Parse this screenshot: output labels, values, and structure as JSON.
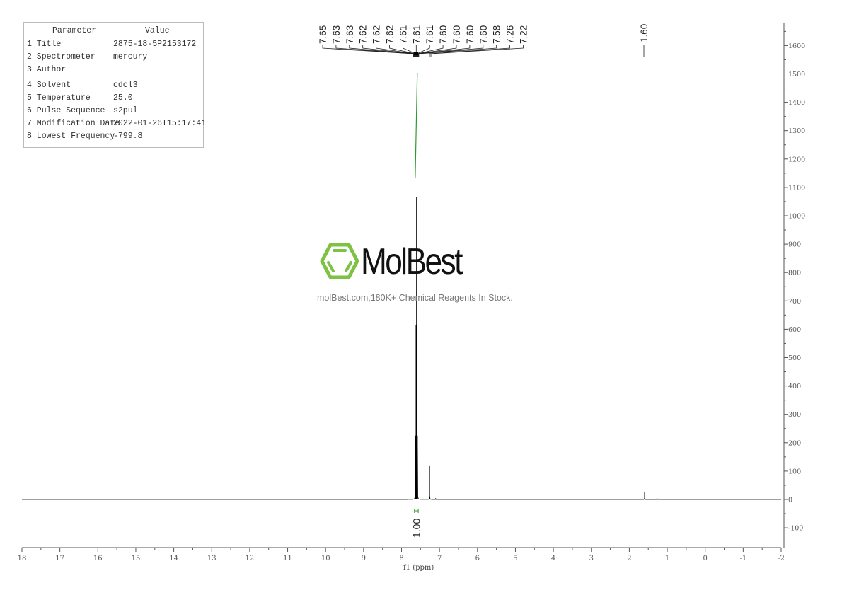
{
  "parameters": {
    "header": {
      "key": "Parameter",
      "value": "Value"
    },
    "rows": [
      {
        "key": "1 Title",
        "value": "2875-18-5P2153172"
      },
      {
        "key": "2 Spectrometer",
        "value": "mercury"
      },
      {
        "key": "3 Author",
        "value": ""
      },
      {
        "key": "4 Solvent",
        "value": "cdcl3"
      },
      {
        "key": "5 Temperature",
        "value": "25.0"
      },
      {
        "key": "6 Pulse Sequence",
        "value": "s2pul"
      },
      {
        "key": "7 Modification Date",
        "value": "2022-01-26T15:17:41"
      },
      {
        "key": "8 Lowest Frequency",
        "value": "-799.8"
      }
    ]
  },
  "watermark": {
    "brand": "MolBest",
    "slogan": "molBest.com,180K+ Chemical Reagents In Stock.",
    "color": "#7dc242"
  },
  "chart_data": {
    "type": "line",
    "xlabel": "f1 (ppm)",
    "ylabel": "",
    "xlim": [
      18,
      -2
    ],
    "ylim": [
      -170,
      1680
    ],
    "x_ticks": [
      18,
      17,
      16,
      15,
      14,
      13,
      12,
      11,
      10,
      9,
      8,
      7,
      6,
      5,
      4,
      3,
      2,
      1,
      0,
      -1,
      -2
    ],
    "y_ticks": [
      -100,
      0,
      100,
      200,
      300,
      400,
      500,
      600,
      700,
      800,
      900,
      1000,
      1100,
      1200,
      1300,
      1400,
      1500,
      1600
    ],
    "peaks": [
      {
        "ppm": 7.61,
        "height": 1065
      },
      {
        "ppm": 7.62,
        "height": 615
      },
      {
        "ppm": 7.6,
        "height": 615
      },
      {
        "ppm": 7.63,
        "height": 225
      },
      {
        "ppm": 7.58,
        "height": 225
      },
      {
        "ppm": 7.26,
        "height": 120
      },
      {
        "ppm": 7.1,
        "height": 5
      },
      {
        "ppm": 1.6,
        "height": 25
      },
      {
        "ppm": 1.25,
        "height": 3
      }
    ],
    "peak_labels_group": [
      "7.65",
      "7.63",
      "7.63",
      "7.62",
      "7.62",
      "7.62",
      "7.61",
      "7.61",
      "7.61",
      "7.60",
      "7.60",
      "7.60",
      "7.60",
      "7.58",
      "7.26",
      "7.22"
    ],
    "peak_label_single": "1.60",
    "integrals": [
      {
        "from": 7.66,
        "to": 7.56,
        "value": "1.00"
      }
    ],
    "colors": {
      "spectrum": "#000000",
      "integral": "#2e9a2e",
      "axis": "#555555"
    }
  }
}
